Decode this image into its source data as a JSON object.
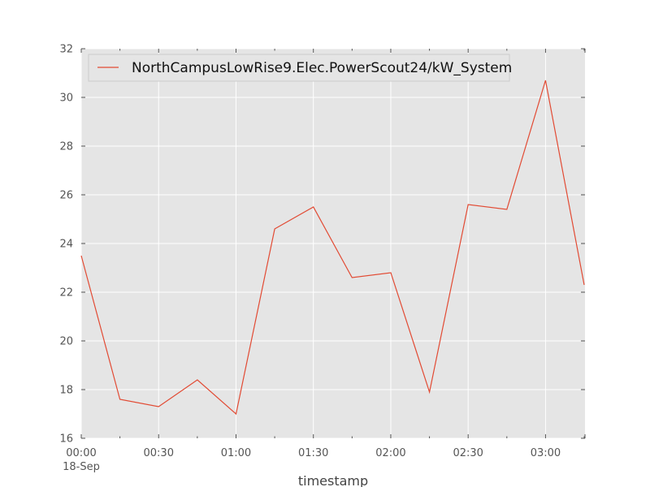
{
  "chart_data": {
    "type": "line",
    "title": "",
    "xlabel": "timestamp",
    "ylabel": "",
    "x": [
      "00:00",
      "00:15",
      "00:30",
      "00:45",
      "01:00",
      "01:15",
      "01:30",
      "01:45",
      "02:00",
      "02:15",
      "02:30",
      "02:45",
      "03:00",
      "03:15"
    ],
    "x_tick_labels": [
      "00:00",
      "00:30",
      "01:00",
      "01:30",
      "02:00",
      "02:30",
      "03:00"
    ],
    "x_date_label": "18-Sep",
    "ylim": [
      16,
      32
    ],
    "y_ticks": [
      16,
      18,
      20,
      22,
      24,
      26,
      28,
      30,
      32
    ],
    "grid": true,
    "legend_position": "top-left",
    "series": [
      {
        "name": "NorthCampusLowRise9.Elec.PowerScout24/kW_System",
        "color": "#E24A33",
        "values": [
          23.5,
          17.6,
          17.3,
          18.4,
          17.0,
          24.6,
          25.5,
          22.6,
          22.8,
          17.9,
          25.6,
          25.4,
          30.7,
          22.3
        ]
      }
    ]
  },
  "colors": {
    "plot_background": "#E5E5E5",
    "grid": "#FFFFFF",
    "tick_label": "#555555"
  }
}
